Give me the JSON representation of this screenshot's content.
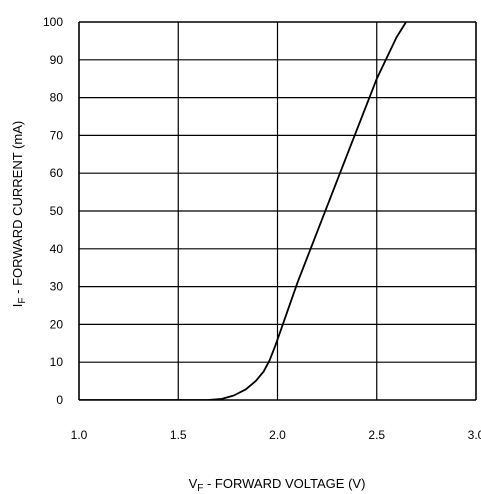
{
  "chart_data": {
    "type": "line",
    "title": "",
    "xlabel": {
      "main": "V",
      "sub": "F",
      "rest": " - FORWARD VOLTAGE (V)"
    },
    "ylabel": {
      "main": "I",
      "sub": "F",
      "rest": " - FORWARD CURRENT (mA)"
    },
    "xlim": [
      1.0,
      3.0
    ],
    "ylim": [
      0,
      100
    ],
    "x_ticks": [
      "1.0",
      "1.5",
      "2.0",
      "2.5",
      "3.0"
    ],
    "x_tick_values": [
      1.0,
      1.5,
      2.0,
      2.5,
      3.0
    ],
    "y_ticks": [
      "0",
      "10",
      "20",
      "30",
      "40",
      "50",
      "60",
      "70",
      "80",
      "90",
      "100"
    ],
    "y_tick_values": [
      0,
      10,
      20,
      30,
      40,
      50,
      60,
      70,
      80,
      90,
      100
    ],
    "grid": true,
    "series": [
      {
        "x": [
          1.0,
          1.5,
          1.65,
          1.72,
          1.78,
          1.84,
          1.89,
          1.93,
          1.96,
          1.99,
          2.02,
          2.1,
          2.2,
          2.3,
          2.4,
          2.5,
          2.6,
          2.66
        ],
        "y": [
          0,
          0,
          0,
          0.3,
          1.2,
          2.8,
          5.0,
          7.5,
          10.5,
          14.5,
          19.0,
          31.0,
          44.5,
          58.0,
          71.5,
          85.0,
          96.0,
          101
        ]
      }
    ]
  }
}
